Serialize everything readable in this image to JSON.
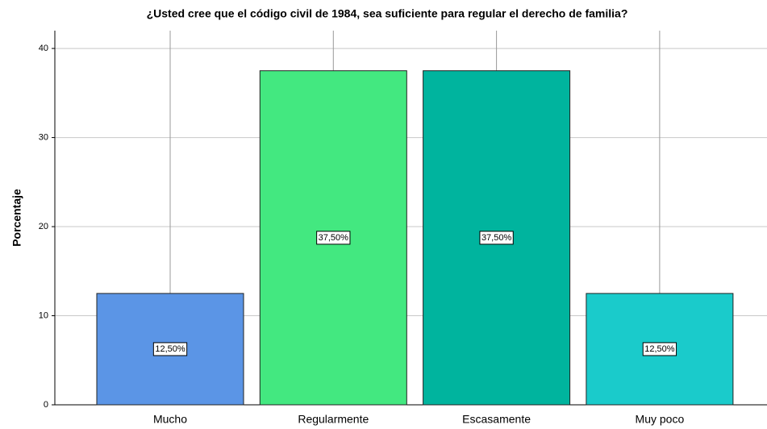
{
  "chart_data": {
    "type": "bar",
    "title": "¿Usted cree que el código civil de 1984, sea suficiente para regular el derecho de familia?",
    "ylabel": "Porcentaje",
    "categories": [
      "Mucho",
      "Regularmente",
      "Escasamente",
      "Muy poco"
    ],
    "values": [
      12.5,
      37.5,
      37.5,
      12.5
    ],
    "value_labels": [
      "12,50%",
      "37,50%",
      "37,50%",
      "12,50%"
    ],
    "colors": [
      "#5b95e6",
      "#43e880",
      "#00b49e",
      "#1acbcb"
    ],
    "ylim": [
      0,
      42
    ],
    "yticks": [
      0,
      10,
      20,
      30,
      40
    ],
    "grid": true
  }
}
